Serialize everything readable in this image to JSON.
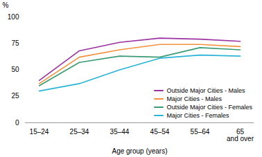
{
  "chart_data": {
    "type": "line",
    "categories": [
      "15–24",
      "25–34",
      "35–44",
      "45–54",
      "55–64",
      "65\nand over"
    ],
    "series": [
      {
        "name": "Outside Major Cities - Males",
        "color": "#9B30A0",
        "values": [
          40,
          68,
          76,
          80,
          79,
          77
        ]
      },
      {
        "name": "Major Cities - Males",
        "color": "#F5903C",
        "values": [
          37,
          62,
          69,
          74,
          74,
          72
        ]
      },
      {
        "name": "Outside Major Cities - Females",
        "color": "#3A9A74",
        "values": [
          35,
          57,
          63,
          62,
          71,
          69
        ]
      },
      {
        "name": "Major Cities - Females",
        "color": "#28B4D8",
        "values": [
          30,
          37,
          50,
          61,
          64,
          63
        ]
      }
    ],
    "ylabel": "%",
    "xlabel": "Age group (years)",
    "ylim": [
      0,
      100
    ],
    "yticks": [
      0,
      25,
      50,
      75,
      100
    ],
    "grid": false,
    "legend": "lower right"
  }
}
